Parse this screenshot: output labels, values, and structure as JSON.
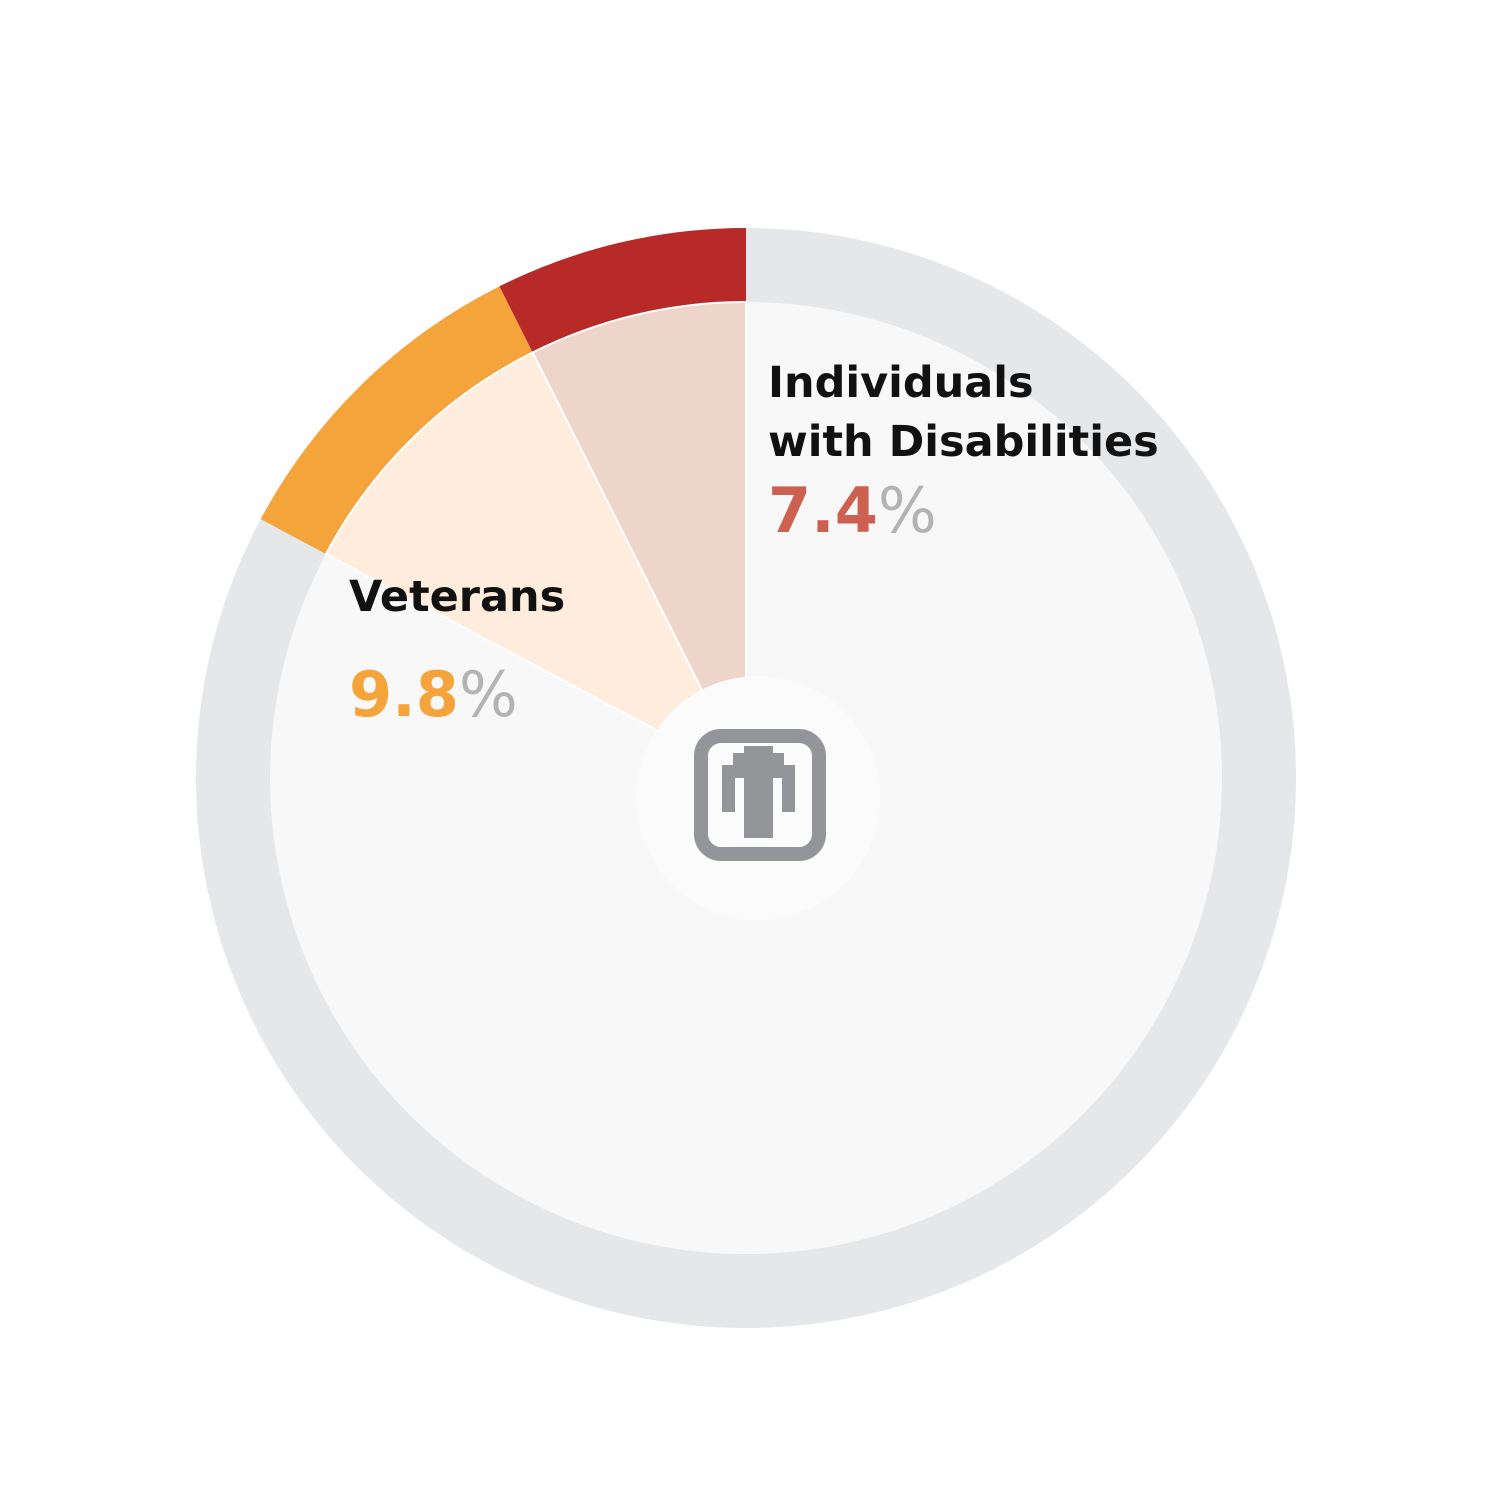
{
  "chart_data": {
    "type": "pie",
    "slices": [
      {
        "label": "Individuals with Disabilities",
        "label_lines": [
          "Individuals",
          "with Disabilities"
        ],
        "value": 7.4,
        "value_text": "7.4",
        "unit": "%",
        "color": "#b72a28",
        "fill": "#eed5ca",
        "text_color": "#cc6152"
      },
      {
        "label": "Veterans",
        "label_lines": [
          "Veterans"
        ],
        "value": 9.8,
        "value_text": "9.8",
        "unit": "%",
        "color": "#f5a33b",
        "fill": "#feeddc",
        "text_color": "#f5a33b"
      }
    ],
    "remainder": {
      "ring_color": "#e6e7e9",
      "fill": "#f8f8f8"
    },
    "start_angle": "12 o'clock",
    "direction": "counterclockwise",
    "center_icon": "thunderbird-logo-icon",
    "center_icon_color": "#939598"
  }
}
